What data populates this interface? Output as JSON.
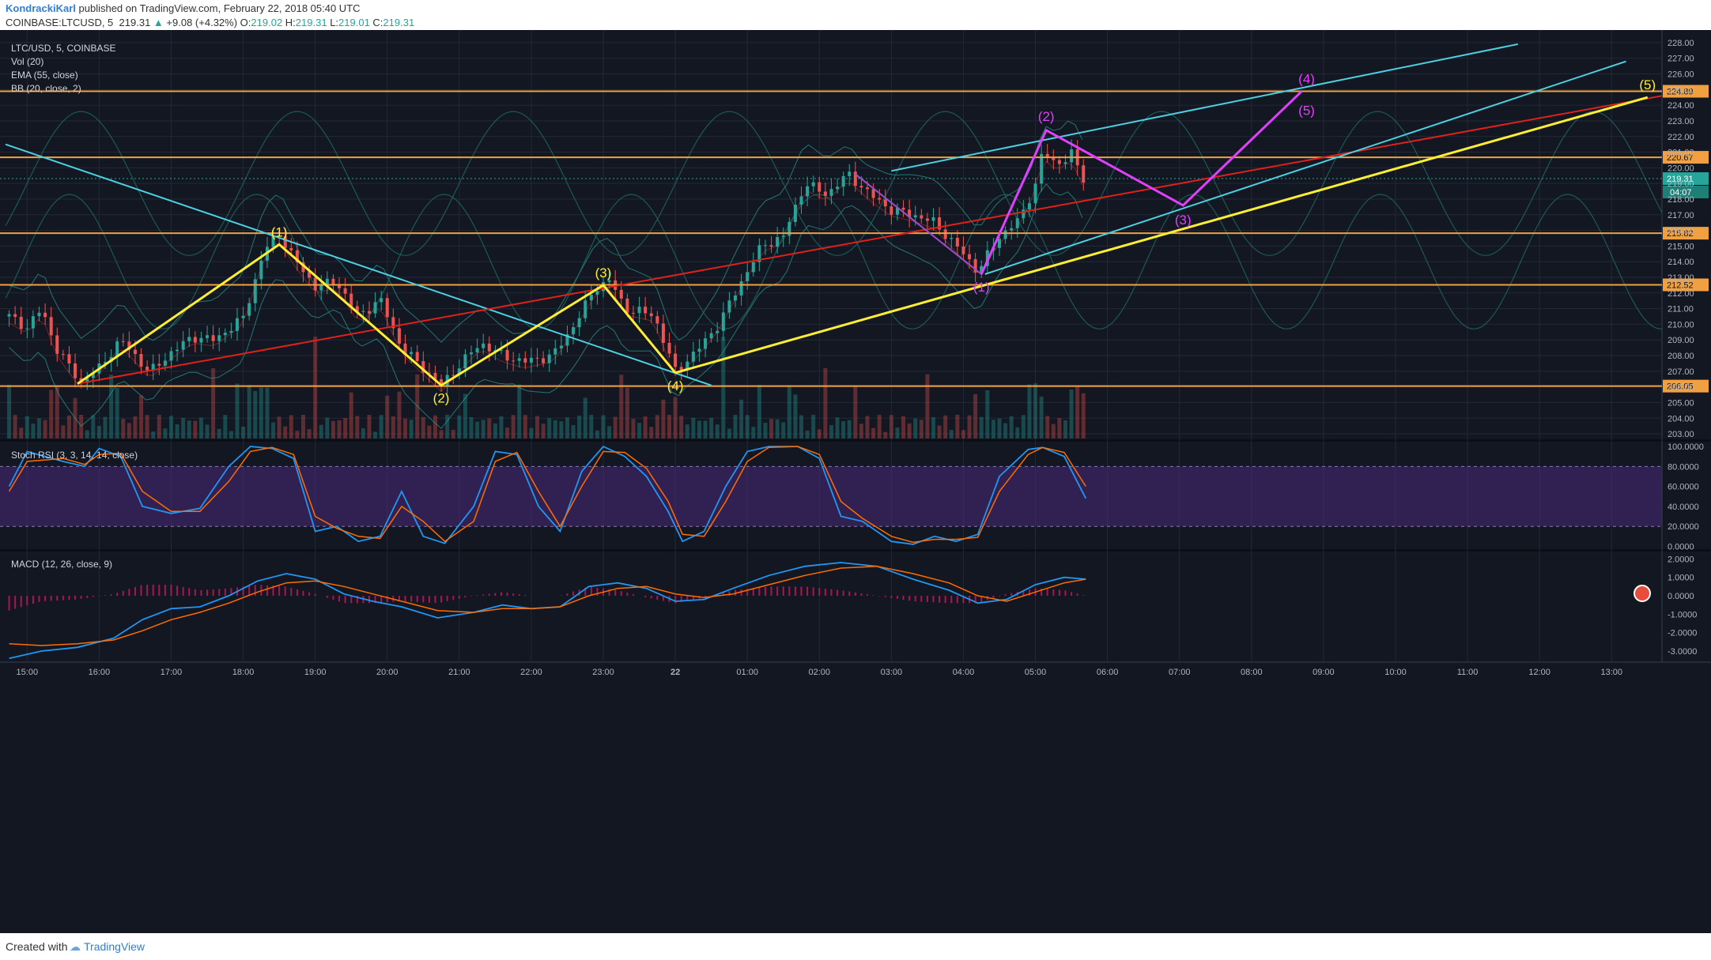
{
  "header": {
    "author": "KondrackiKarl",
    "published_text": "published on TradingView.com, February 22, 2018 05:40 UTC",
    "symbol": "COINBASE:LTCUSD, 5",
    "last": "219.31",
    "change_arrow": "▲",
    "change": "+9.08 (+4.32%)",
    "o_label": "O:",
    "o": "219.02",
    "h_label": "H:",
    "h": "219.31",
    "l_label": "L:",
    "l": "219.01",
    "c_label": "C:",
    "c": "219.31"
  },
  "footer": {
    "created_with": "Created with",
    "logo_text": "TradingView"
  },
  "colors": {
    "bg": "#131722",
    "grid": "#232838",
    "up": "#26a69a",
    "down": "#ef5350",
    "cyan_trend": "#4dd0e1",
    "red_trend": "#e0211b",
    "yellow": "#ffee33",
    "magenta": "#e040fb",
    "hline": "#f0a040",
    "bb": "#2aa198",
    "stoch_k": "#2196f3",
    "stoch_d": "#ff6d00",
    "band": "#4a2a7a"
  },
  "chart_data": [
    {
      "type": "candlestick",
      "legend": [
        "LTC/USD, 5, COINBASE",
        "Vol (20)",
        "EMA (55, close)",
        "BB (20, close, 2)"
      ],
      "ylim": [
        202.7,
        228.4
      ],
      "y_ticks": [
        "203.00",
        "204.00",
        "205.00",
        "206.00",
        "207.00",
        "208.00",
        "209.00",
        "210.00",
        "211.00",
        "212.00",
        "213.00",
        "214.00",
        "215.00",
        "216.00",
        "217.00",
        "218.00",
        "219.00",
        "220.00",
        "221.00",
        "222.00",
        "223.00",
        "224.00",
        "225.00",
        "226.00",
        "227.00",
        "228.00"
      ],
      "x_ticks": [
        "15:00",
        "16:00",
        "17:00",
        "18:00",
        "19:00",
        "20:00",
        "21:00",
        "22:00",
        "23:00",
        "22",
        "01:00",
        "02:00",
        "03:00",
        "04:00",
        "05:00",
        "06:00",
        "07:00",
        "08:00",
        "09:00",
        "10:00",
        "11:00",
        "12:00",
        "13:00"
      ],
      "x_range_hours": [
        14.7,
        37.7
      ],
      "price_path": [
        [
          14.75,
          210.5
        ],
        [
          15.0,
          209.8
        ],
        [
          15.2,
          211.0
        ],
        [
          15.4,
          208.5
        ],
        [
          15.6,
          207.2
        ],
        [
          15.75,
          206.3
        ],
        [
          16.0,
          207.2
        ],
        [
          16.3,
          209.0
        ],
        [
          16.5,
          208.0
        ],
        [
          16.7,
          206.9
        ],
        [
          17.0,
          208.2
        ],
        [
          17.3,
          209.2
        ],
        [
          17.6,
          209.0
        ],
        [
          18.0,
          210.4
        ],
        [
          18.3,
          214.8
        ],
        [
          18.5,
          215.8
        ],
        [
          18.7,
          214.2
        ],
        [
          19.0,
          212.4
        ],
        [
          19.3,
          212.7
        ],
        [
          19.6,
          210.5
        ],
        [
          19.9,
          211.6
        ],
        [
          20.2,
          208.5
        ],
        [
          20.5,
          207.2
        ],
        [
          20.75,
          206.1
        ],
        [
          21.0,
          207.4
        ],
        [
          21.3,
          208.8
        ],
        [
          21.6,
          208.0
        ],
        [
          21.9,
          207.6
        ],
        [
          22.3,
          208.0
        ],
        [
          22.6,
          210.0
        ],
        [
          22.9,
          212.4
        ],
        [
          23.1,
          212.8
        ],
        [
          23.3,
          211.0
        ],
        [
          23.7,
          210.6
        ],
        [
          24.0,
          207.0
        ],
        [
          24.3,
          208.3
        ],
        [
          24.6,
          210.0
        ],
        [
          24.9,
          212.6
        ],
        [
          25.2,
          215.0
        ],
        [
          25.5,
          215.6
        ],
        [
          25.8,
          219.0
        ],
        [
          26.1,
          218.3
        ],
        [
          26.4,
          219.6
        ],
        [
          26.7,
          218.3
        ],
        [
          27.0,
          217.3
        ],
        [
          27.3,
          217.0
        ],
        [
          27.6,
          216.5
        ],
        [
          28.0,
          214.5
        ],
        [
          28.2,
          213.4
        ],
        [
          28.5,
          215.6
        ],
        [
          28.8,
          216.8
        ],
        [
          29.0,
          219.0
        ],
        [
          29.1,
          221.0
        ],
        [
          29.3,
          220.2
        ],
        [
          29.5,
          220.9
        ],
        [
          29.65,
          219.3
        ]
      ],
      "horizontal_levels": [
        "224.89",
        "220.67",
        "215.82",
        "212.52",
        "206.05"
      ],
      "price_label": "219.31",
      "countdown": "04:07",
      "annotations": {
        "yellow_wave": [
          {
            "x": 15.7,
            "y": 206.2
          },
          {
            "x": 18.5,
            "y": 215.1,
            "label": "(1)"
          },
          {
            "x": 20.75,
            "y": 206.1,
            "label": "(2)"
          },
          {
            "x": 23.0,
            "y": 212.5,
            "label": "(3)"
          },
          {
            "x": 24.0,
            "y": 206.9,
            "label": "(4)"
          },
          {
            "x": 37.5,
            "y": 224.5,
            "label": "(5)"
          }
        ],
        "magenta_wave": [
          {
            "x": 28.25,
            "y": 213.2,
            "label": "(1)"
          },
          {
            "x": 29.15,
            "y": 222.4,
            "label": "(2)"
          },
          {
            "x": 31.05,
            "y": 217.6,
            "label": "(3)"
          },
          {
            "x": 32.7,
            "y": 224.9,
            "label": "(4)"
          },
          {
            "x": 32.7,
            "y": 224.9,
            "label": "(5)"
          }
        ],
        "cyan_downtrend": [
          [
            14.7,
            221.5
          ],
          [
            24.5,
            206.1
          ]
        ],
        "red_trend": [
          [
            15.7,
            206.2
          ],
          [
            37.7,
            224.6
          ]
        ],
        "cyan_channel_upper": [
          [
            27.0,
            219.8
          ],
          [
            35.7,
            227.9
          ]
        ],
        "cyan_channel_lower": [
          [
            28.3,
            213.2
          ],
          [
            37.2,
            226.8
          ]
        ],
        "purple_short": [
          [
            26.5,
            219.6
          ],
          [
            28.25,
            213.2
          ]
        ]
      }
    },
    {
      "type": "line",
      "name": "Stoch RSI (3, 3, 14, 14, close)",
      "ylim": [
        -2,
        104
      ],
      "y_ticks": [
        "100.0000",
        "80.0000",
        "60.0000",
        "40.0000",
        "20.0000",
        "0.0000"
      ],
      "band": [
        20,
        80
      ],
      "k": [
        [
          14.75,
          60
        ],
        [
          15.0,
          95
        ],
        [
          15.5,
          85
        ],
        [
          15.8,
          80
        ],
        [
          16.0,
          98
        ],
        [
          16.3,
          90
        ],
        [
          16.6,
          40
        ],
        [
          17.0,
          33
        ],
        [
          17.4,
          38
        ],
        [
          17.8,
          80
        ],
        [
          18.1,
          100
        ],
        [
          18.4,
          98
        ],
        [
          18.7,
          88
        ],
        [
          19.0,
          15
        ],
        [
          19.3,
          20
        ],
        [
          19.6,
          5
        ],
        [
          19.9,
          10
        ],
        [
          20.2,
          55
        ],
        [
          20.5,
          10
        ],
        [
          20.8,
          3
        ],
        [
          21.2,
          40
        ],
        [
          21.5,
          95
        ],
        [
          21.8,
          92
        ],
        [
          22.1,
          40
        ],
        [
          22.4,
          15
        ],
        [
          22.7,
          75
        ],
        [
          23.0,
          100
        ],
        [
          23.3,
          90
        ],
        [
          23.6,
          70
        ],
        [
          23.9,
          35
        ],
        [
          24.1,
          5
        ],
        [
          24.4,
          15
        ],
        [
          24.7,
          60
        ],
        [
          25.0,
          95
        ],
        [
          25.3,
          100
        ],
        [
          25.7,
          100
        ],
        [
          26.0,
          88
        ],
        [
          26.3,
          30
        ],
        [
          26.6,
          25
        ],
        [
          27.0,
          5
        ],
        [
          27.3,
          2
        ],
        [
          27.6,
          10
        ],
        [
          27.9,
          5
        ],
        [
          28.2,
          12
        ],
        [
          28.5,
          70
        ],
        [
          28.9,
          97
        ],
        [
          29.1,
          99
        ],
        [
          29.4,
          90
        ],
        [
          29.7,
          48
        ]
      ],
      "d": [
        [
          14.75,
          55
        ],
        [
          15.0,
          85
        ],
        [
          15.5,
          88
        ],
        [
          15.8,
          82
        ],
        [
          16.0,
          92
        ],
        [
          16.3,
          93
        ],
        [
          16.6,
          55
        ],
        [
          17.0,
          35
        ],
        [
          17.4,
          35
        ],
        [
          17.8,
          65
        ],
        [
          18.1,
          95
        ],
        [
          18.4,
          99
        ],
        [
          18.7,
          92
        ],
        [
          19.0,
          30
        ],
        [
          19.3,
          18
        ],
        [
          19.6,
          10
        ],
        [
          19.9,
          8
        ],
        [
          20.2,
          40
        ],
        [
          20.5,
          25
        ],
        [
          20.8,
          5
        ],
        [
          21.2,
          25
        ],
        [
          21.5,
          85
        ],
        [
          21.8,
          94
        ],
        [
          22.1,
          55
        ],
        [
          22.4,
          20
        ],
        [
          22.7,
          60
        ],
        [
          23.0,
          95
        ],
        [
          23.3,
          94
        ],
        [
          23.6,
          78
        ],
        [
          23.9,
          45
        ],
        [
          24.1,
          12
        ],
        [
          24.4,
          10
        ],
        [
          24.7,
          45
        ],
        [
          25.0,
          85
        ],
        [
          25.3,
          99
        ],
        [
          25.7,
          100
        ],
        [
          26.0,
          92
        ],
        [
          26.3,
          45
        ],
        [
          26.6,
          28
        ],
        [
          27.0,
          10
        ],
        [
          27.3,
          4
        ],
        [
          27.6,
          7
        ],
        [
          27.9,
          7
        ],
        [
          28.2,
          9
        ],
        [
          28.5,
          55
        ],
        [
          28.9,
          92
        ],
        [
          29.1,
          99
        ],
        [
          29.4,
          94
        ],
        [
          29.7,
          60
        ]
      ]
    },
    {
      "type": "line",
      "name": "MACD (12, 26, close, 9)",
      "ylim": [
        -3.6,
        2.4
      ],
      "y_ticks": [
        "2.0000",
        "1.0000",
        "0.0000",
        "-1.0000",
        "-2.0000",
        "-3.0000"
      ],
      "macd": [
        [
          14.75,
          -3.4
        ],
        [
          15.2,
          -3.0
        ],
        [
          15.7,
          -2.8
        ],
        [
          16.2,
          -2.3
        ],
        [
          16.6,
          -1.3
        ],
        [
          17.0,
          -0.7
        ],
        [
          17.4,
          -0.6
        ],
        [
          17.8,
          0.0
        ],
        [
          18.2,
          0.8
        ],
        [
          18.6,
          1.2
        ],
        [
          19.0,
          0.9
        ],
        [
          19.4,
          0.1
        ],
        [
          19.8,
          -0.3
        ],
        [
          20.2,
          -0.6
        ],
        [
          20.7,
          -1.2
        ],
        [
          21.2,
          -0.9
        ],
        [
          21.6,
          -0.5
        ],
        [
          22.0,
          -0.7
        ],
        [
          22.4,
          -0.6
        ],
        [
          22.8,
          0.5
        ],
        [
          23.2,
          0.7
        ],
        [
          23.6,
          0.4
        ],
        [
          24.0,
          -0.3
        ],
        [
          24.4,
          -0.2
        ],
        [
          24.8,
          0.4
        ],
        [
          25.3,
          1.1
        ],
        [
          25.8,
          1.6
        ],
        [
          26.3,
          1.8
        ],
        [
          26.8,
          1.6
        ],
        [
          27.3,
          0.9
        ],
        [
          27.8,
          0.3
        ],
        [
          28.2,
          -0.4
        ],
        [
          28.6,
          -0.2
        ],
        [
          29.0,
          0.6
        ],
        [
          29.4,
          1.0
        ],
        [
          29.7,
          0.9
        ]
      ],
      "signal": [
        [
          14.75,
          -2.6
        ],
        [
          15.2,
          -2.7
        ],
        [
          15.7,
          -2.6
        ],
        [
          16.2,
          -2.4
        ],
        [
          16.6,
          -1.9
        ],
        [
          17.0,
          -1.3
        ],
        [
          17.4,
          -0.9
        ],
        [
          17.8,
          -0.4
        ],
        [
          18.2,
          0.2
        ],
        [
          18.6,
          0.7
        ],
        [
          19.0,
          0.8
        ],
        [
          19.4,
          0.5
        ],
        [
          19.8,
          0.1
        ],
        [
          20.2,
          -0.3
        ],
        [
          20.7,
          -0.8
        ],
        [
          21.2,
          -0.9
        ],
        [
          21.6,
          -0.7
        ],
        [
          22.0,
          -0.7
        ],
        [
          22.4,
          -0.6
        ],
        [
          22.8,
          0.0
        ],
        [
          23.2,
          0.4
        ],
        [
          23.6,
          0.5
        ],
        [
          24.0,
          0.1
        ],
        [
          24.4,
          -0.1
        ],
        [
          24.8,
          0.1
        ],
        [
          25.3,
          0.6
        ],
        [
          25.8,
          1.1
        ],
        [
          26.3,
          1.5
        ],
        [
          26.8,
          1.6
        ],
        [
          27.3,
          1.2
        ],
        [
          27.8,
          0.7
        ],
        [
          28.2,
          0.0
        ],
        [
          28.6,
          -0.3
        ],
        [
          29.0,
          0.2
        ],
        [
          29.4,
          0.7
        ],
        [
          29.7,
          0.9
        ]
      ]
    }
  ]
}
